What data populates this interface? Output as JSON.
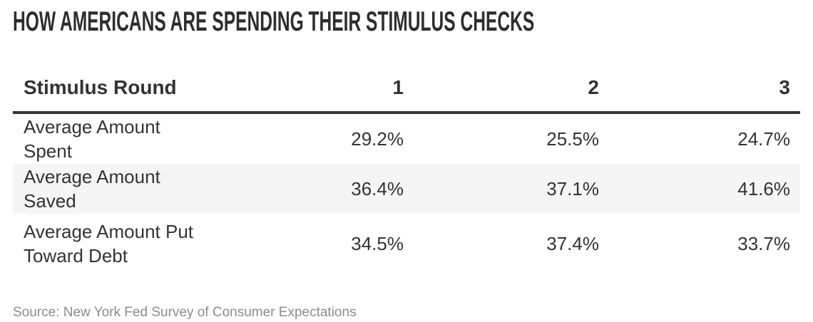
{
  "chart_data": {
    "type": "table",
    "title": "HOW AMERICANS ARE SPENDING THEIR STIMULUS CHECKS",
    "columns": [
      "Stimulus Round",
      "1",
      "2",
      "3"
    ],
    "rows": [
      {
        "label": "Average Amount Spent",
        "values": [
          "29.2%",
          "25.5%",
          "24.7%"
        ]
      },
      {
        "label": "Average Amount Saved",
        "values": [
          "36.4%",
          "37.1%",
          "41.6%"
        ]
      },
      {
        "label": "Average Amount Put Toward Debt",
        "values": [
          "34.5%",
          "37.4%",
          "33.7%"
        ]
      }
    ],
    "source": "Source: New York Fed Survey of Consumer Expectations",
    "layout": {
      "striped_row_index": 1,
      "value_alignment": "right",
      "grid": "off",
      "header_rule": "thick-bottom"
    },
    "colors": {
      "title_text": "#2e2e2e",
      "body_text": "#333333",
      "header_rule": "#363636",
      "striped_row_bg": "#f5f5f5",
      "source_text": "#8c8c8c",
      "background": "#ffffff"
    }
  }
}
